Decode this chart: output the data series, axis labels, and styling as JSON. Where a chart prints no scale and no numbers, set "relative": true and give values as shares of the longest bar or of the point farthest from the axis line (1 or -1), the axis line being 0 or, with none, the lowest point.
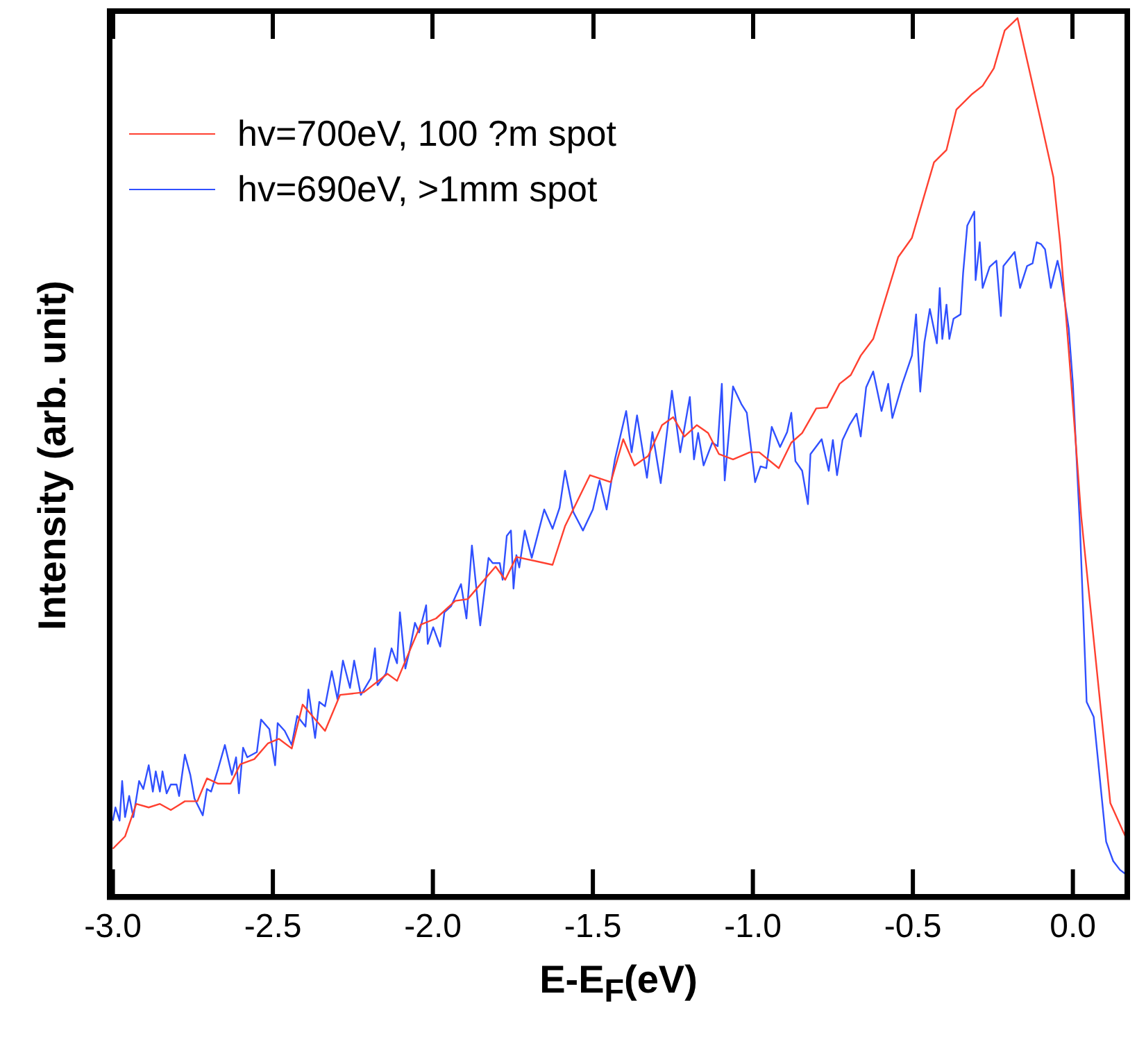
{
  "chart_data": {
    "type": "line",
    "xlabel": "E-E$_{F}$(eV)",
    "ylabel": "Intensity (arb. unit)",
    "relative": true,
    "xlim": [
      -3.01,
      0.17
    ],
    "xticks": [
      {
        "value": -3.0,
        "label": "-3.0"
      },
      {
        "value": -2.5,
        "label": "-2.5"
      },
      {
        "value": -2.0,
        "label": "-2.0"
      },
      {
        "value": -1.5,
        "label": "-1.5"
      },
      {
        "value": -1.0,
        "label": "-1.0"
      },
      {
        "value": -0.5,
        "label": "-0.5"
      },
      {
        "value": 0.0,
        "label": "0.0"
      }
    ],
    "tick_labels": "x",
    "legend": "top left",
    "grid": false,
    "marker": "none",
    "line_style": "solid",
    "series": [
      {
        "name": "hv=700eV, 100 ?m spot",
        "color": "#ff4030",
        "x": [
          -3.0,
          -2.962,
          -2.927,
          -2.888,
          -2.853,
          -2.819,
          -2.775,
          -2.736,
          -2.706,
          -2.671,
          -2.632,
          -2.602,
          -2.558,
          -2.515,
          -2.481,
          -2.441,
          -2.407,
          -2.337,
          -2.29,
          -2.216,
          -2.142,
          -2.112,
          -2.038,
          -1.99,
          -1.93,
          -1.891,
          -1.804,
          -1.774,
          -1.739,
          -1.626,
          -1.587,
          -1.509,
          -1.444,
          -1.405,
          -1.37,
          -1.327,
          -1.284,
          -1.249,
          -1.214,
          -1.175,
          -1.14,
          -1.106,
          -1.062,
          -1.01,
          -0.98,
          -0.919,
          -0.88,
          -0.846,
          -0.802,
          -0.768,
          -0.729,
          -0.694,
          -0.663,
          -0.624,
          -0.546,
          -0.503,
          -0.434,
          -0.395,
          -0.364,
          -0.317,
          -0.282,
          -0.247,
          -0.213,
          -0.173,
          -0.1,
          -0.061,
          -0.039,
          -0.013,
          0.009,
          0.026,
          0.117,
          0.169
        ],
        "values": [
          0.055,
          0.069,
          0.106,
          0.102,
          0.106,
          0.099,
          0.109,
          0.109,
          0.135,
          0.129,
          0.129,
          0.151,
          0.157,
          0.175,
          0.18,
          0.169,
          0.219,
          0.189,
          0.23,
          0.233,
          0.254,
          0.246,
          0.31,
          0.317,
          0.337,
          0.339,
          0.376,
          0.361,
          0.387,
          0.378,
          0.422,
          0.48,
          0.472,
          0.521,
          0.491,
          0.502,
          0.537,
          0.546,
          0.524,
          0.537,
          0.528,
          0.504,
          0.498,
          0.506,
          0.506,
          0.488,
          0.517,
          0.528,
          0.556,
          0.557,
          0.584,
          0.594,
          0.616,
          0.635,
          0.728,
          0.75,
          0.836,
          0.85,
          0.896,
          0.913,
          0.923,
          0.943,
          0.986,
          1.0,
          0.883,
          0.819,
          0.742,
          0.622,
          0.517,
          0.433,
          0.107,
          0.065
        ]
      },
      {
        "name": "hv=690eV, >1mm spot",
        "color": "#3050ff",
        "x": [
          -3.0,
          -2.992,
          -2.979,
          -2.971,
          -2.962,
          -2.949,
          -2.936,
          -2.918,
          -2.905,
          -2.888,
          -2.875,
          -2.866,
          -2.853,
          -2.845,
          -2.832,
          -2.819,
          -2.801,
          -2.793,
          -2.775,
          -2.758,
          -2.745,
          -2.719,
          -2.706,
          -2.693,
          -2.671,
          -2.65,
          -2.628,
          -2.615,
          -2.606,
          -2.593,
          -2.58,
          -2.55,
          -2.537,
          -2.511,
          -2.493,
          -2.485,
          -2.463,
          -2.441,
          -2.424,
          -2.398,
          -2.389,
          -2.368,
          -2.355,
          -2.337,
          -2.316,
          -2.298,
          -2.281,
          -2.259,
          -2.246,
          -2.225,
          -2.194,
          -2.181,
          -2.173,
          -2.147,
          -2.129,
          -2.112,
          -2.103,
          -2.086,
          -2.073,
          -2.056,
          -2.043,
          -2.021,
          -2.016,
          -1.999,
          -1.977,
          -1.964,
          -1.943,
          -1.912,
          -1.895,
          -1.878,
          -1.852,
          -1.826,
          -1.813,
          -1.791,
          -1.782,
          -1.769,
          -1.756,
          -1.748,
          -1.739,
          -1.73,
          -1.713,
          -1.691,
          -1.652,
          -1.626,
          -1.604,
          -1.587,
          -1.561,
          -1.531,
          -1.5,
          -1.479,
          -1.457,
          -1.431,
          -1.396,
          -1.379,
          -1.362,
          -1.331,
          -1.314,
          -1.288,
          -1.271,
          -1.253,
          -1.227,
          -1.197,
          -1.184,
          -1.171,
          -1.154,
          -1.127,
          -1.11,
          -1.097,
          -1.088,
          -1.062,
          -1.036,
          -1.019,
          -0.993,
          -0.976,
          -0.958,
          -0.941,
          -0.915,
          -0.893,
          -0.88,
          -0.867,
          -0.846,
          -0.828,
          -0.82,
          -0.785,
          -0.763,
          -0.75,
          -0.737,
          -0.72,
          -0.698,
          -0.676,
          -0.663,
          -0.646,
          -0.624,
          -0.598,
          -0.577,
          -0.564,
          -0.533,
          -0.503,
          -0.49,
          -0.477,
          -0.464,
          -0.447,
          -0.425,
          -0.416,
          -0.408,
          -0.395,
          -0.386,
          -0.373,
          -0.351,
          -0.343,
          -0.33,
          -0.308,
          -0.304,
          -0.291,
          -0.282,
          -0.26,
          -0.239,
          -0.225,
          -0.217,
          -0.182,
          -0.165,
          -0.143,
          -0.126,
          -0.113,
          -0.1,
          -0.087,
          -0.069,
          -0.048,
          -0.039,
          -0.013,
          0.0,
          0.022,
          0.043,
          0.065,
          0.104,
          0.126,
          0.147,
          0.169
        ],
        "values": [
          0.087,
          0.102,
          0.087,
          0.132,
          0.091,
          0.115,
          0.091,
          0.132,
          0.123,
          0.15,
          0.12,
          0.143,
          0.12,
          0.143,
          0.118,
          0.128,
          0.128,
          0.115,
          0.162,
          0.139,
          0.112,
          0.093,
          0.123,
          0.12,
          0.146,
          0.173,
          0.139,
          0.159,
          0.118,
          0.17,
          0.159,
          0.165,
          0.202,
          0.191,
          0.15,
          0.198,
          0.189,
          0.173,
          0.206,
          0.194,
          0.236,
          0.181,
          0.222,
          0.217,
          0.257,
          0.225,
          0.269,
          0.238,
          0.269,
          0.23,
          0.249,
          0.283,
          0.241,
          0.254,
          0.283,
          0.266,
          0.324,
          0.26,
          0.28,
          0.312,
          0.301,
          0.332,
          0.288,
          0.307,
          0.285,
          0.324,
          0.331,
          0.356,
          0.317,
          0.4,
          0.309,
          0.386,
          0.38,
          0.38,
          0.361,
          0.411,
          0.417,
          0.351,
          0.389,
          0.375,
          0.417,
          0.386,
          0.441,
          0.419,
          0.443,
          0.485,
          0.438,
          0.417,
          0.441,
          0.474,
          0.441,
          0.498,
          0.553,
          0.506,
          0.548,
          0.477,
          0.529,
          0.471,
          0.521,
          0.576,
          0.506,
          0.569,
          0.498,
          0.528,
          0.491,
          0.517,
          0.513,
          0.584,
          0.474,
          0.581,
          0.561,
          0.551,
          0.472,
          0.49,
          0.488,
          0.535,
          0.512,
          0.529,
          0.551,
          0.496,
          0.485,
          0.447,
          0.504,
          0.521,
          0.485,
          0.52,
          0.48,
          0.52,
          0.537,
          0.55,
          0.524,
          0.58,
          0.598,
          0.553,
          0.584,
          0.545,
          0.584,
          0.616,
          0.663,
          0.575,
          0.631,
          0.669,
          0.63,
          0.693,
          0.635,
          0.674,
          0.635,
          0.658,
          0.663,
          0.71,
          0.764,
          0.78,
          0.702,
          0.745,
          0.693,
          0.717,
          0.724,
          0.661,
          0.718,
          0.734,
          0.693,
          0.718,
          0.721,
          0.745,
          0.743,
          0.737,
          0.693,
          0.724,
          0.71,
          0.647,
          0.584,
          0.422,
          0.222,
          0.205,
          0.063,
          0.041,
          0.031,
          0.025
        ]
      }
    ]
  }
}
